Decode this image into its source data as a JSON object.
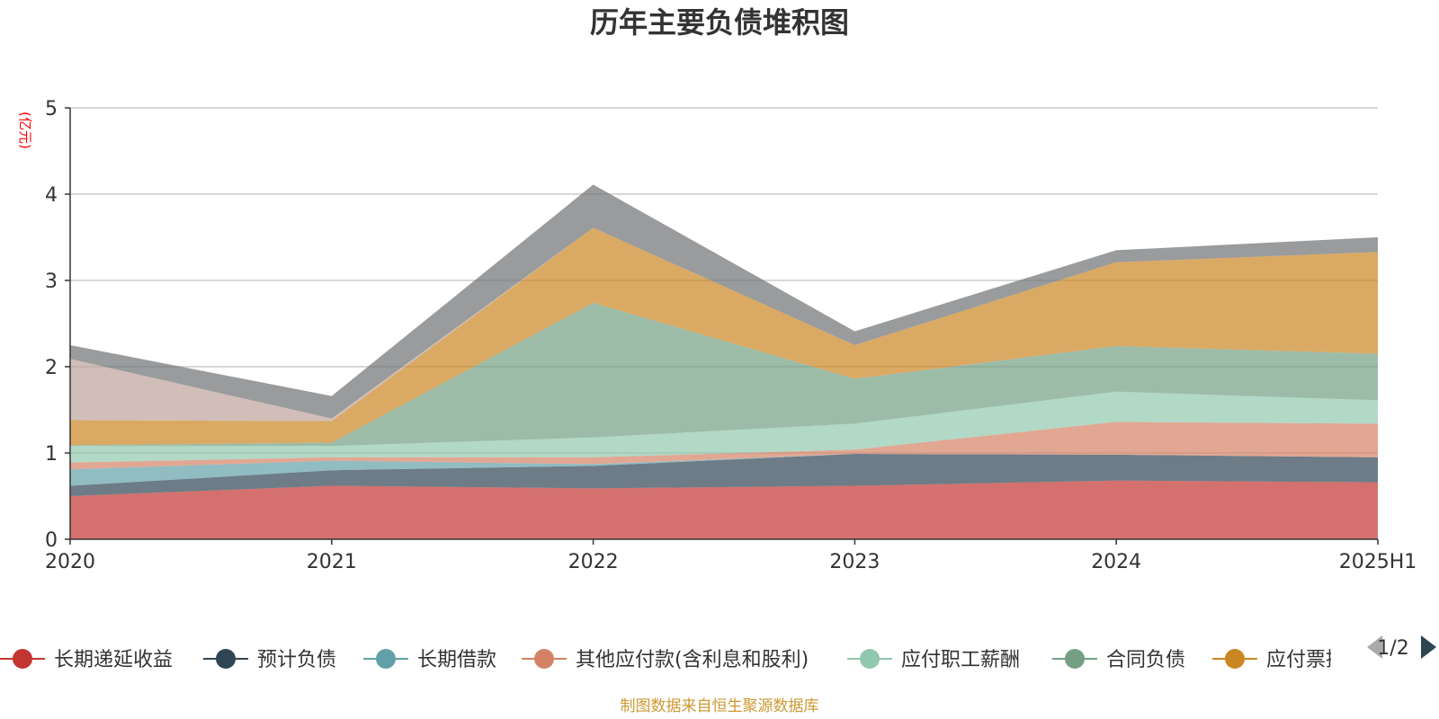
{
  "chart_data": {
    "type": "area",
    "stacked": true,
    "title": "历年主要负债堆积图",
    "ylabel": "(亿元)",
    "x": [
      "2020",
      "2021",
      "2022",
      "2023",
      "2024",
      "2025H1"
    ],
    "ylim": [
      0,
      5
    ],
    "yticks": [
      "0",
      "1",
      "2",
      "3",
      "4",
      "5"
    ],
    "grid": true,
    "legend_position": "bottom",
    "series": [
      {
        "name": "长期递延收益",
        "color": "#c23531",
        "values": [
          0.5,
          0.62,
          0.59,
          0.62,
          0.68,
          0.66
        ]
      },
      {
        "name": "预计负债",
        "color": "#2f4554",
        "values": [
          0.12,
          0.18,
          0.26,
          0.37,
          0.3,
          0.29
        ]
      },
      {
        "name": "长期借款",
        "color": "#61a0a8",
        "values": [
          0.19,
          0.11,
          0.02,
          0.0,
          0.0,
          0.0
        ]
      },
      {
        "name": "其他应付款(含利息和股利)",
        "color": "#d48265",
        "values": [
          0.08,
          0.04,
          0.08,
          0.05,
          0.38,
          0.39
        ]
      },
      {
        "name": "应付职工薪酬",
        "color": "#91c7ae",
        "values": [
          0.19,
          0.13,
          0.23,
          0.3,
          0.35,
          0.27
        ]
      },
      {
        "name": "合同负债",
        "color": "#749f83",
        "values": [
          0.01,
          0.04,
          1.56,
          0.52,
          0.53,
          0.54
        ]
      },
      {
        "name": "应付票据",
        "color": "#ca8622",
        "values": [
          0.29,
          0.25,
          0.87,
          0.39,
          0.97,
          1.18
        ]
      },
      {
        "name": "",
        "color": "#bda29a",
        "values": [
          0.71,
          0.03,
          0.0,
          0.0,
          0.0,
          0.0
        ]
      },
      {
        "name": "",
        "color": "#6e7074",
        "values": [
          0.16,
          0.26,
          0.5,
          0.16,
          0.14,
          0.17
        ]
      }
    ],
    "legend_visible_items": [
      "长期递延收益",
      "预计负债",
      "长期借款",
      "其他应付款(含利息和股利)",
      "应付职工薪酬",
      "合同负债",
      "应付票据"
    ],
    "legend_page": "1/2"
  },
  "source_note": "制图数据来自恒生聚源数据库"
}
